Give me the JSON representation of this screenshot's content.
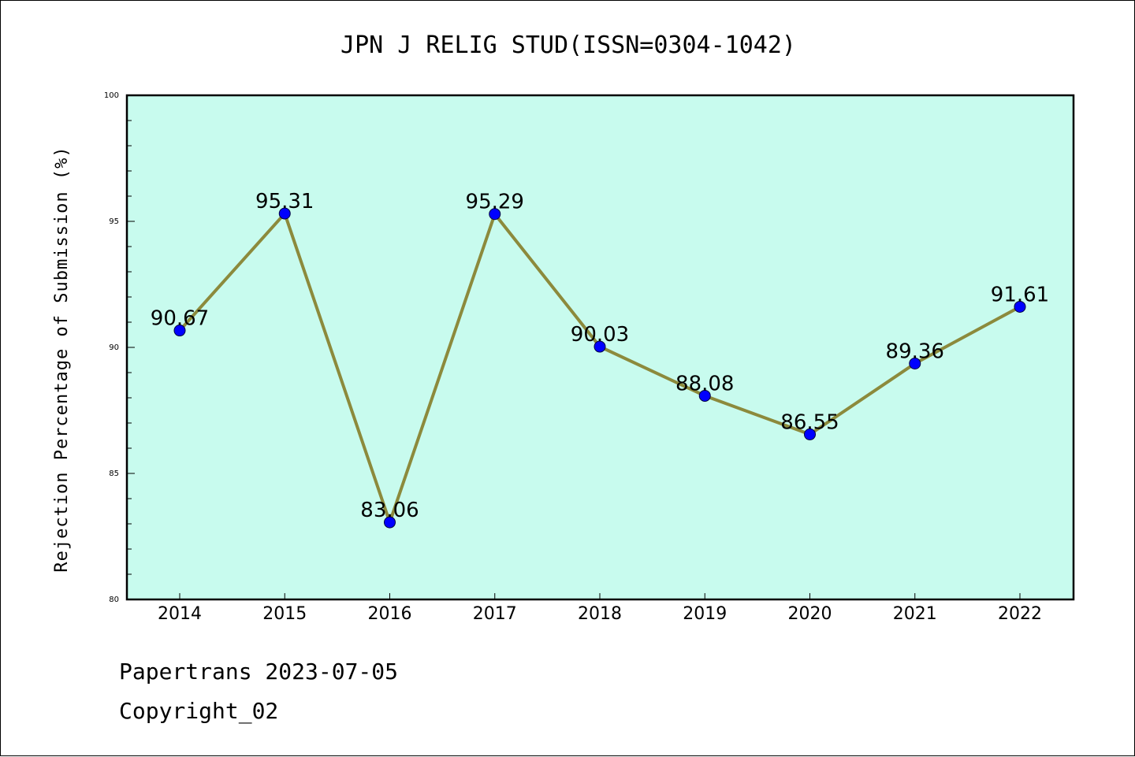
{
  "chart_data": {
    "type": "line",
    "title": "JPN J RELIG STUD(ISSN=0304-1042)",
    "xlabel": "",
    "ylabel": "Rejection Percentage of Submission (%)",
    "categories": [
      "2014",
      "2015",
      "2016",
      "2017",
      "2018",
      "2019",
      "2020",
      "2021",
      "2022"
    ],
    "series": [
      {
        "values": [
          90.67,
          95.31,
          83.06,
          95.29,
          90.03,
          88.08,
          86.55,
          89.36,
          91.61
        ]
      }
    ],
    "data_labels": [
      "90.67",
      "95.31",
      "83.06",
      "95.29",
      "90.03",
      "88.08",
      "86.55",
      "89.36",
      "91.61"
    ],
    "ylim": [
      80,
      100
    ],
    "yticks": [
      "80",
      "85",
      "90",
      "95",
      "100"
    ],
    "grid": false,
    "colors": {
      "plot_background": "#c8fbee",
      "line": "#8c8a3c",
      "marker": "#0000ff"
    }
  },
  "footer": {
    "line1": "Papertrans 2023-07-05",
    "line2": "Copyright_02"
  }
}
